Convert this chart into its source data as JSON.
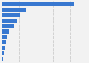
{
  "values": [
    1746,
    580,
    460,
    370,
    290,
    165,
    120,
    100,
    80,
    60,
    25
  ],
  "bar_color": "#3878d0",
  "background_color": "#f2f2f2",
  "grid_color": "#cccccc",
  "grid_linestyle": "--",
  "n_gridlines": 4,
  "figsize": [
    1.0,
    0.71
  ],
  "dpi": 100,
  "bar_height": 0.75,
  "bar_spacing": 0.05
}
